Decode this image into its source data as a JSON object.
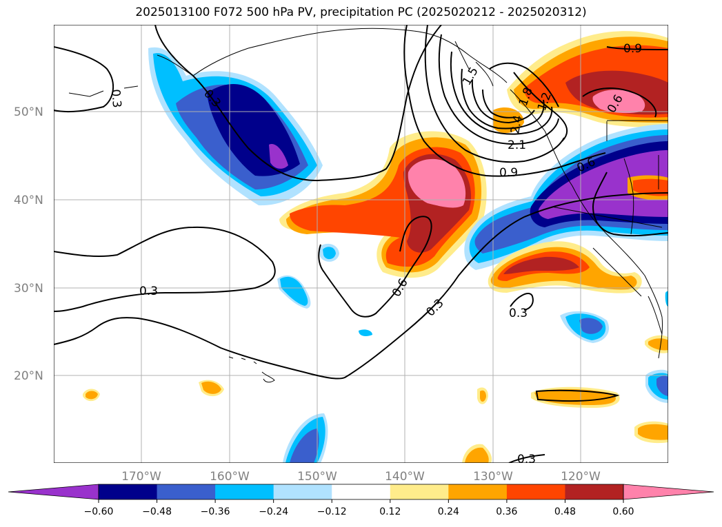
{
  "title": "2025013100 F072 500 hPa PV, precipitation PC (2025020212 - 2025020312)",
  "map": {
    "lat_labels": [
      "50°N",
      "40°N",
      "30°N",
      "20°N"
    ],
    "lon_labels": [
      "170°W",
      "160°W",
      "150°W",
      "140°W",
      "130°W",
      "120°W"
    ],
    "lat_values": [
      50,
      40,
      30,
      20
    ],
    "lon_values": [
      -170,
      -160,
      -150,
      -140,
      -130,
      -120
    ],
    "lon_range": [
      -180,
      -110
    ],
    "lat_range": [
      10,
      60
    ],
    "grid": true,
    "pv_contour_labels": [
      "0.3",
      "0.3",
      "0.3",
      "0.3",
      "0.3",
      "0.3",
      "0.6",
      "0.6",
      "0.6",
      "0.9",
      "0.9",
      "1.2",
      "1.5",
      "1.8",
      "2.1",
      "2.4"
    ],
    "fill_palette": {
      "neg_0_60_ext": "#9932cc",
      "neg_0_60": "#00008b",
      "neg_0_48": "#3a5fcd",
      "neg_0_36": "#00bfff",
      "neg_0_24": "#b0e2ff",
      "neutral": "#ffffff",
      "pos_0_12": "#ffec8b",
      "pos_0_24": "#ffa500",
      "pos_0_36": "#ff4500",
      "pos_0_48": "#b22222",
      "pos_0_60": "#ff82ab"
    }
  },
  "colorbar": {
    "ticks": [
      "−0.60",
      "−0.48",
      "−0.36",
      "−0.24",
      "−0.12",
      "0.12",
      "0.24",
      "0.36",
      "0.48",
      "0.60"
    ],
    "colors": [
      "#9932cc",
      "#00008b",
      "#3a5fcd",
      "#00bfff",
      "#b0e2ff",
      "#ffffff",
      "#ffec8b",
      "#ffa500",
      "#ff4500",
      "#b22222",
      "#ff82ab"
    ]
  }
}
